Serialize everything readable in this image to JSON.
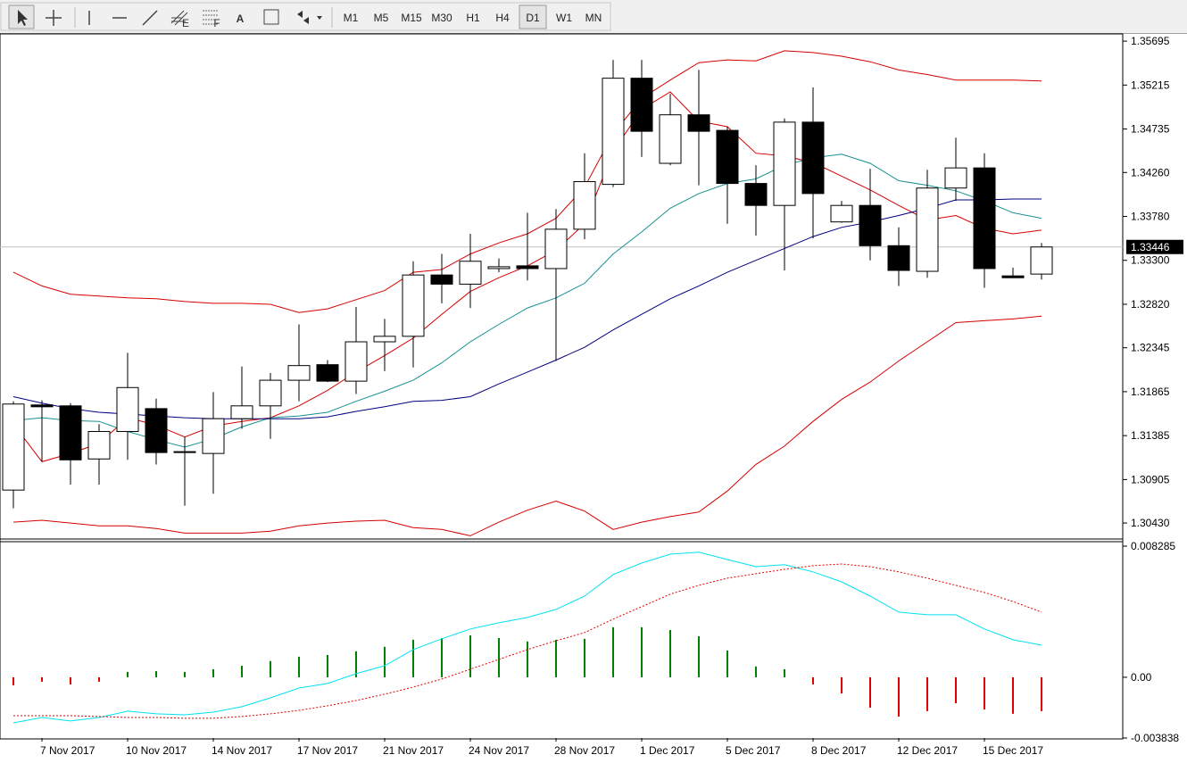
{
  "toolbar": {
    "tool_letters": [
      "E",
      "F",
      "A"
    ],
    "periods": [
      "M1",
      "M5",
      "M15",
      "M30",
      "H1",
      "H4",
      "D1",
      "W1",
      "MN"
    ],
    "active_period": "D1"
  },
  "chart_data": [
    {
      "type": "candlestick",
      "grid": false,
      "categories": [
        null,
        "7 Nov 2017",
        null,
        null,
        "10 Nov 2017",
        null,
        null,
        "14 Nov 2017",
        null,
        null,
        "17 Nov 2017",
        null,
        null,
        "21 Nov 2017",
        null,
        null,
        "24 Nov 2017",
        null,
        null,
        "28 Nov 2017",
        null,
        null,
        "1 Dec 2017",
        null,
        null,
        "5 Dec 2017",
        null,
        null,
        "8 Dec 2017",
        null,
        null,
        "12 Dec 2017",
        null,
        null,
        "15 Dec 2017",
        null,
        null
      ],
      "open": [
        1.3079,
        1.3172,
        1.3171,
        1.3113,
        1.3143,
        1.3168,
        1.312,
        1.3119,
        1.3157,
        1.3171,
        1.3199,
        1.3216,
        1.3198,
        1.3241,
        1.3247,
        1.3314,
        1.3304,
        1.3321,
        1.3324,
        1.3321,
        1.3364,
        1.3413,
        1.3529,
        1.3436,
        1.3489,
        1.3472,
        1.3414,
        1.339,
        1.3481,
        1.3372,
        1.339,
        1.3346,
        1.3318,
        1.3409,
        1.3431,
        1.3313,
        1.3315
      ],
      "high": [
        1.3176,
        1.3177,
        1.3174,
        1.3151,
        1.3229,
        1.3179,
        1.3137,
        1.3186,
        1.3214,
        1.3207,
        1.326,
        1.3221,
        1.3279,
        1.3266,
        1.3329,
        1.3337,
        1.3359,
        1.3332,
        1.3382,
        1.3386,
        1.3447,
        1.3549,
        1.3549,
        1.3512,
        1.3538,
        1.3476,
        1.3434,
        1.3485,
        1.3519,
        1.3395,
        1.343,
        1.3366,
        1.3429,
        1.3464,
        1.3447,
        1.3322,
        1.3349
      ],
      "low": [
        1.3059,
        1.311,
        1.3085,
        1.3085,
        1.3112,
        1.3107,
        1.3062,
        1.3075,
        1.3146,
        1.3135,
        1.3176,
        1.3197,
        1.3184,
        1.3209,
        1.3213,
        1.3283,
        1.3278,
        1.3317,
        1.3308,
        1.322,
        1.3353,
        1.341,
        1.3443,
        1.3434,
        1.3412,
        1.337,
        1.3357,
        1.3319,
        1.3354,
        1.3371,
        1.333,
        1.3302,
        1.3311,
        1.3395,
        1.33,
        1.3311,
        1.3309
      ],
      "close": [
        1.3173,
        1.317,
        1.3112,
        1.3143,
        1.3191,
        1.312,
        1.3121,
        1.3157,
        1.3171,
        1.3199,
        1.3215,
        1.3198,
        1.3241,
        1.3247,
        1.3314,
        1.3304,
        1.3329,
        1.3323,
        1.3321,
        1.3364,
        1.3416,
        1.3529,
        1.3471,
        1.3489,
        1.3471,
        1.3414,
        1.339,
        1.3481,
        1.3403,
        1.339,
        1.3346,
        1.3319,
        1.3409,
        1.3431,
        1.3321,
        1.3311,
        1.33446
      ],
      "series": [
        {
          "color": "#d40000",
          "values": [
            1.3317,
            1.3302,
            1.3293,
            1.3291,
            1.3289,
            1.3288,
            1.3285,
            1.3283,
            1.3283,
            1.3282,
            1.3273,
            1.3277,
            1.3287,
            1.3297,
            1.3317,
            1.332,
            1.3337,
            1.3349,
            1.3359,
            1.3376,
            1.341,
            1.3468,
            1.3507,
            1.3527,
            1.3546,
            1.3549,
            1.3548,
            1.3559,
            1.3557,
            1.3553,
            1.3547,
            1.3538,
            1.3533,
            1.3527,
            1.3527,
            1.3527,
            1.3526
          ]
        },
        {
          "color": "#d40000",
          "values": [
            1.3044,
            1.3046,
            1.3043,
            1.304,
            1.304,
            1.3037,
            1.3032,
            1.3032,
            1.3032,
            1.3034,
            1.304,
            1.3043,
            1.3045,
            1.3046,
            1.3038,
            1.3036,
            1.3029,
            1.3044,
            1.3057,
            1.3067,
            1.3056,
            1.3036,
            1.3044,
            1.305,
            1.3055,
            1.3078,
            1.3107,
            1.3127,
            1.3154,
            1.3178,
            1.3197,
            1.322,
            1.3241,
            1.3262,
            1.3264,
            1.3266,
            1.3269
          ]
        },
        {
          "color": "#d40000",
          "values": [
            1.3151,
            1.311,
            1.3119,
            1.313,
            1.3158,
            1.315,
            1.3137,
            1.3149,
            1.3154,
            1.3158,
            1.3171,
            1.3188,
            1.3208,
            1.3226,
            1.3245,
            1.3271,
            1.3296,
            1.3311,
            1.3324,
            1.3341,
            1.337,
            1.3449,
            1.3495,
            1.3514,
            1.3482,
            1.3476,
            1.3447,
            1.3444,
            1.3437,
            1.3422,
            1.3407,
            1.339,
            1.3374,
            1.3379,
            1.3365,
            1.3359,
            1.3363
          ]
        },
        {
          "color": "#17908f",
          "values": [
            1.3155,
            1.3158,
            1.3155,
            1.3154,
            1.3143,
            1.3134,
            1.3126,
            1.3135,
            1.3148,
            1.3158,
            1.316,
            1.3164,
            1.3176,
            1.3187,
            1.3199,
            1.3218,
            1.3241,
            1.326,
            1.3278,
            1.3289,
            1.3305,
            1.3337,
            1.3361,
            1.3387,
            1.3403,
            1.3414,
            1.3419,
            1.3434,
            1.3442,
            1.3446,
            1.3436,
            1.3417,
            1.3412,
            1.3406,
            1.3395,
            1.3382,
            1.3376
          ]
        },
        {
          "color": "#000080",
          "values": [
            1.3181,
            1.3174,
            1.3168,
            1.3164,
            1.3162,
            1.316,
            1.3158,
            1.3157,
            1.3157,
            1.3157,
            1.3157,
            1.3159,
            1.3165,
            1.317,
            1.3176,
            1.3177,
            1.3181,
            1.3195,
            1.3208,
            1.3221,
            1.3235,
            1.3254,
            1.3271,
            1.3288,
            1.3302,
            1.3317,
            1.333,
            1.3343,
            1.3356,
            1.3366,
            1.3372,
            1.3379,
            1.3387,
            1.3396,
            1.3396,
            1.3397,
            1.3397
          ]
        }
      ],
      "ylim": [
        1.30265,
        1.35774
      ],
      "yticks": [
        1.35695,
        1.35215,
        1.34735,
        {
          "value": 1.3426,
          "label": "1.34260"
        },
        {
          "value": 1.3378,
          "label": "1.33780"
        },
        {
          "value": 1.333,
          "label": "1.33300"
        },
        {
          "value": 1.3282,
          "label": "1.32820"
        },
        1.32345,
        1.31865,
        1.31385,
        1.30905,
        {
          "value": 1.3043,
          "label": "1.30430"
        }
      ]
    },
    {
      "type": "macd",
      "grid": false,
      "histogram": {
        "values": [
          -0.00051,
          -0.00028,
          -0.00045,
          -0.00028,
          0.00034,
          0.00039,
          0.00034,
          0.00051,
          0.00073,
          0.00102,
          0.0013,
          0.00141,
          0.00164,
          0.00192,
          0.00237,
          0.00248,
          0.00265,
          0.00248,
          0.00226,
          0.00237,
          0.00243,
          0.00316,
          0.00316,
          0.00299,
          0.00259,
          0.00169,
          0.00068,
          0.00051,
          -0.00045,
          -0.00102,
          -0.00192,
          -0.00248,
          -0.00214,
          -0.00164,
          -0.00203,
          -0.00231,
          -0.00214
        ],
        "colors": [
          "#e00000",
          "#e00000",
          "#e00000",
          "#e00000",
          "#008000",
          "#008000",
          "#008000",
          "#008000",
          "#008000",
          "#008000",
          "#008000",
          "#008000",
          "#008000",
          "#008000",
          "#008000",
          "#008000",
          "#008000",
          "#008000",
          "#008000",
          "#008000",
          "#008000",
          "#008000",
          "#008000",
          "#008000",
          "#008000",
          "#008000",
          "#008000",
          "#008000",
          "#e00000",
          "#e00000",
          "#e00000",
          "#e00000",
          "#e00000",
          "#e00000",
          "#e00000",
          "#e00000",
          "#e00000"
        ]
      },
      "series": [
        {
          "color": "#00e1f0",
          "dash": false,
          "values": [
            -0.00288,
            -0.00254,
            -0.00276,
            -0.00254,
            -0.00214,
            -0.00231,
            -0.00237,
            -0.0022,
            -0.00186,
            -0.0013,
            -0.00068,
            -0.00039,
            0.00023,
            0.00073,
            0.00175,
            0.00243,
            0.00305,
            0.00344,
            0.00378,
            0.00429,
            0.00513,
            0.00649,
            0.00722,
            0.00778,
            0.0079,
            0.00744,
            0.00699,
            0.00711,
            0.00666,
            0.00603,
            0.00513,
            0.00412,
            0.00395,
            0.00395,
            0.00305,
            0.00237,
            0.00203
          ]
        },
        {
          "color": "#e00000",
          "dash": true,
          "values": [
            -0.00243,
            -0.00243,
            -0.00243,
            -0.00248,
            -0.00254,
            -0.00254,
            -0.00259,
            -0.00259,
            -0.00248,
            -0.00231,
            -0.00209,
            -0.0018,
            -0.00147,
            -0.00107,
            -0.00062,
            -0.00011,
            0.00051,
            0.00113,
            0.00175,
            0.00231,
            0.00282,
            0.00367,
            0.00446,
            0.00525,
            0.00581,
            0.00626,
            0.00654,
            0.00682,
            0.00705,
            0.00716,
            0.00699,
            0.00666,
            0.00626,
            0.00581,
            0.00536,
            0.00479,
            0.00412
          ]
        }
      ],
      "ylim": [
        -0.003838,
        0.008285
      ],
      "yticks": [
        0.008285,
        {
          "value": 0,
          "label": "0.00"
        },
        -0.003838
      ]
    }
  ]
}
